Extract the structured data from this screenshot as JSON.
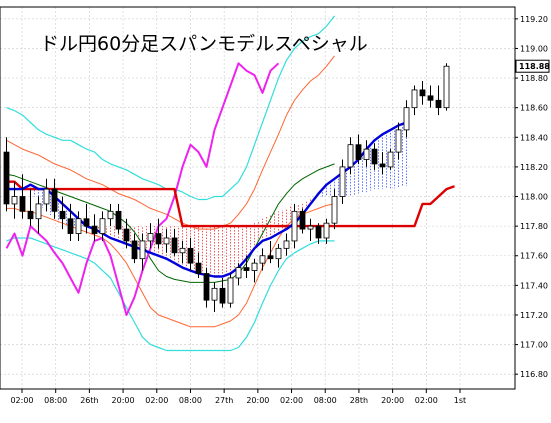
{
  "chart_data": {
    "type": "candlestick",
    "title": "ドル円60分足スパンモデルスペシャル",
    "price_label": "118.88",
    "y_ticks": [
      "116.80",
      "117.00",
      "117.20",
      "117.40",
      "117.60",
      "117.80",
      "118.00",
      "118.20",
      "118.40",
      "118.60",
      "118.80",
      "119.00",
      "119.20"
    ],
    "x_ticks": [
      "02:00",
      "08:00",
      "26th",
      "20:00",
      "02:00",
      "08:00",
      "27th",
      "20:00",
      "02:00",
      "08:00",
      "28th",
      "20:00",
      "02:00",
      "1st"
    ],
    "ylim": [
      116.7,
      119.28
    ],
    "grid": true,
    "colors": {
      "bollinger_1sigma": "#ff6633",
      "bollinger_2sigma": "#33dddd",
      "bollinger_mid": "#006600",
      "lagging_line": "#ee22ee",
      "base_line": "#dd0000",
      "blue_span": "#0000dd",
      "cloud_fill": "#3355ff",
      "candle_up": "#ffffff",
      "candle_down": "#000000"
    },
    "candles": [
      [
        118.3,
        118.4,
        117.9,
        117.95
      ],
      [
        117.95,
        118.1,
        117.85,
        118.0
      ],
      [
        118.0,
        118.15,
        117.85,
        117.9
      ],
      [
        117.9,
        118.05,
        117.8,
        117.85
      ],
      [
        117.85,
        118.0,
        117.75,
        117.95
      ],
      [
        117.95,
        118.12,
        117.9,
        118.05
      ],
      [
        118.05,
        118.12,
        117.85,
        117.9
      ],
      [
        117.9,
        118.0,
        117.78,
        117.85
      ],
      [
        117.85,
        117.95,
        117.7,
        117.75
      ],
      [
        117.75,
        117.9,
        117.7,
        117.85
      ],
      [
        117.85,
        117.95,
        117.75,
        117.8
      ],
      [
        117.8,
        117.88,
        117.7,
        117.75
      ],
      [
        117.75,
        117.9,
        117.7,
        117.85
      ],
      [
        117.85,
        117.95,
        117.8,
        117.9
      ],
      [
        117.9,
        117.95,
        117.75,
        117.78
      ],
      [
        117.78,
        117.85,
        117.65,
        117.7
      ],
      [
        117.7,
        117.75,
        117.55,
        117.58
      ],
      [
        117.58,
        117.75,
        117.5,
        117.7
      ],
      [
        117.7,
        117.82,
        117.65,
        117.75
      ],
      [
        117.75,
        117.85,
        117.65,
        117.68
      ],
      [
        117.68,
        117.78,
        117.62,
        117.72
      ],
      [
        117.72,
        117.78,
        117.6,
        117.62
      ],
      [
        117.62,
        117.7,
        117.55,
        117.65
      ],
      [
        117.65,
        117.72,
        117.5,
        117.55
      ],
      [
        117.55,
        117.62,
        117.45,
        117.48
      ],
      [
        117.48,
        117.52,
        117.25,
        117.3
      ],
      [
        117.3,
        117.42,
        117.22,
        117.38
      ],
      [
        117.38,
        117.45,
        117.25,
        117.28
      ],
      [
        117.28,
        117.48,
        117.25,
        117.45
      ],
      [
        117.45,
        117.55,
        117.4,
        117.52
      ],
      [
        117.52,
        117.6,
        117.45,
        117.5
      ],
      [
        117.5,
        117.58,
        117.42,
        117.55
      ],
      [
        117.55,
        117.65,
        117.5,
        117.6
      ],
      [
        117.6,
        117.7,
        117.55,
        117.58
      ],
      [
        117.58,
        117.68,
        117.52,
        117.65
      ],
      [
        117.65,
        117.75,
        117.6,
        117.7
      ],
      [
        117.7,
        117.95,
        117.65,
        117.9
      ],
      [
        117.9,
        117.92,
        117.75,
        117.78
      ],
      [
        117.78,
        117.85,
        117.7,
        117.8
      ],
      [
        117.8,
        117.82,
        117.68,
        117.72
      ],
      [
        117.72,
        117.85,
        117.68,
        117.82
      ],
      [
        117.82,
        118.05,
        117.78,
        118.0
      ],
      [
        118.0,
        118.25,
        117.95,
        118.2
      ],
      [
        118.2,
        118.4,
        118.15,
        118.35
      ],
      [
        118.35,
        118.42,
        118.22,
        118.25
      ],
      [
        118.25,
        118.38,
        118.2,
        118.32
      ],
      [
        118.32,
        118.36,
        118.18,
        118.22
      ],
      [
        118.22,
        118.3,
        118.15,
        118.2
      ],
      [
        118.2,
        118.32,
        118.18,
        118.3
      ],
      [
        118.3,
        118.5,
        118.25,
        118.45
      ],
      [
        118.45,
        118.65,
        118.4,
        118.6
      ],
      [
        118.6,
        118.75,
        118.55,
        118.72
      ],
      [
        118.72,
        118.78,
        118.62,
        118.68
      ],
      [
        118.68,
        118.75,
        118.6,
        118.65
      ],
      [
        118.65,
        118.75,
        118.55,
        118.6
      ],
      [
        118.6,
        118.9,
        118.58,
        118.88
      ]
    ],
    "base_line": [
      118.1,
      118.1,
      118.05,
      118.05,
      118.05,
      118.05,
      118.05,
      118.05,
      118.05,
      118.05,
      118.05,
      118.05,
      118.05,
      118.05,
      118.05,
      118.05,
      118.05,
      118.05,
      118.05,
      118.05,
      118.05,
      118.05,
      117.8,
      117.8,
      117.8,
      117.8,
      117.8,
      117.8,
      117.8,
      117.8,
      117.8,
      117.8,
      117.8,
      117.8,
      117.8,
      117.8,
      117.8,
      117.8,
      117.8,
      117.8,
      117.8,
      117.8,
      117.8,
      117.8,
      117.8,
      117.8,
      117.8,
      117.8,
      117.8,
      117.8,
      117.8,
      117.8,
      117.95,
      117.95,
      118.0,
      118.05,
      118.07
    ],
    "blue_span": [
      118.05,
      118.05,
      118.05,
      118.08,
      118.05,
      118.05,
      118.0,
      117.95,
      117.9,
      117.85,
      117.8,
      117.78,
      117.75,
      117.72,
      117.7,
      117.68,
      117.66,
      117.64,
      117.62,
      117.6,
      117.58,
      117.55,
      117.52,
      117.5,
      117.48,
      117.47,
      117.46,
      117.46,
      117.48,
      117.52,
      117.58,
      117.65,
      117.7,
      117.72,
      117.75,
      117.78,
      117.82,
      117.88,
      117.95,
      118.02,
      118.08,
      118.12,
      118.16,
      118.2,
      118.25,
      118.32,
      118.38,
      118.42,
      118.45,
      118.48,
      118.5
    ],
    "cloud_lower": [
      118.05,
      118.05,
      118.05,
      118.05,
      117.95,
      117.9,
      117.85,
      117.8,
      117.8,
      117.8,
      117.8,
      117.8,
      117.8,
      117.8,
      117.8,
      117.8,
      117.8,
      117.8,
      117.8,
      117.8,
      117.8,
      117.8,
      117.8,
      117.8,
      117.8,
      117.8,
      117.8,
      117.8,
      117.8,
      117.8,
      117.8,
      117.82,
      117.85,
      117.88,
      117.9,
      117.92,
      117.95,
      117.95,
      117.98,
      118.0,
      118.0,
      118.0,
      118.0,
      118.0,
      118.02,
      118.03,
      118.05,
      118.05,
      118.05,
      118.06,
      118.07
    ],
    "lagging_line": [
      117.65,
      117.75,
      117.6,
      117.8,
      117.75,
      117.7,
      117.62,
      117.55,
      117.45,
      117.35,
      117.55,
      117.7,
      117.72,
      117.6,
      117.4,
      117.2,
      117.32,
      117.5,
      117.65,
      117.8,
      117.85,
      118.0,
      118.2,
      118.35,
      118.3,
      118.2,
      118.45,
      118.6,
      118.75,
      118.9,
      118.85,
      118.82,
      118.7,
      118.85,
      118.9
    ],
    "bb_upper2": [
      118.6,
      118.58,
      118.55,
      118.5,
      118.45,
      118.42,
      118.4,
      118.38,
      118.38,
      118.35,
      118.32,
      118.3,
      118.25,
      118.22,
      118.2,
      118.18,
      118.15,
      118.12,
      118.1,
      118.08,
      118.05,
      118.05,
      118.03,
      118.0,
      117.98,
      117.98,
      118.0,
      118.0,
      118.05,
      118.1,
      118.2,
      118.35,
      118.5,
      118.65,
      118.8,
      118.92,
      119.0,
      119.05,
      119.08,
      119.1,
      119.15,
      119.22
    ],
    "bb_upper1": [
      118.38,
      118.35,
      118.32,
      118.3,
      118.28,
      118.25,
      118.22,
      118.2,
      118.18,
      118.15,
      118.12,
      118.1,
      118.08,
      118.05,
      118.02,
      118.0,
      117.98,
      117.95,
      117.92,
      117.9,
      117.88,
      117.85,
      117.82,
      117.8,
      117.78,
      117.78,
      117.78,
      117.8,
      117.82,
      117.88,
      117.95,
      118.05,
      118.18,
      118.3,
      118.42,
      118.55,
      118.65,
      118.72,
      118.78,
      118.82,
      118.88,
      118.95
    ],
    "bb_mid": [
      118.15,
      118.14,
      118.12,
      118.1,
      118.08,
      118.06,
      118.04,
      118.02,
      118.0,
      117.98,
      117.96,
      117.94,
      117.92,
      117.9,
      117.86,
      117.82,
      117.76,
      117.68,
      117.58,
      117.5,
      117.46,
      117.44,
      117.43,
      117.42,
      117.42,
      117.42,
      117.42,
      117.43,
      117.44,
      117.48,
      117.55,
      117.65,
      117.75,
      117.85,
      117.95,
      118.02,
      118.08,
      118.12,
      118.15,
      118.18,
      118.2,
      118.22
    ],
    "bb_lower1": [
      117.92,
      117.92,
      117.9,
      117.9,
      117.88,
      117.86,
      117.84,
      117.82,
      117.8,
      117.78,
      117.76,
      117.74,
      117.72,
      117.68,
      117.62,
      117.55,
      117.45,
      117.35,
      117.25,
      117.2,
      117.18,
      117.16,
      117.14,
      117.12,
      117.12,
      117.12,
      117.12,
      117.14,
      117.16,
      117.2,
      117.28,
      117.4,
      117.52,
      117.62,
      117.72,
      117.8,
      117.85,
      117.88,
      117.9,
      117.92,
      117.94,
      117.95
    ],
    "bb_lower2": [
      117.7,
      117.72,
      117.72,
      117.72,
      117.7,
      117.68,
      117.66,
      117.64,
      117.62,
      117.6,
      117.58,
      117.55,
      117.5,
      117.45,
      117.35,
      117.25,
      117.15,
      117.05,
      117.0,
      116.98,
      116.96,
      116.96,
      116.96,
      116.96,
      116.96,
      116.96,
      116.96,
      116.96,
      116.96,
      116.98,
      117.05,
      117.15,
      117.28,
      117.4,
      117.5,
      117.58,
      117.62,
      117.65,
      117.68,
      117.7,
      117.7,
      117.7
    ]
  }
}
